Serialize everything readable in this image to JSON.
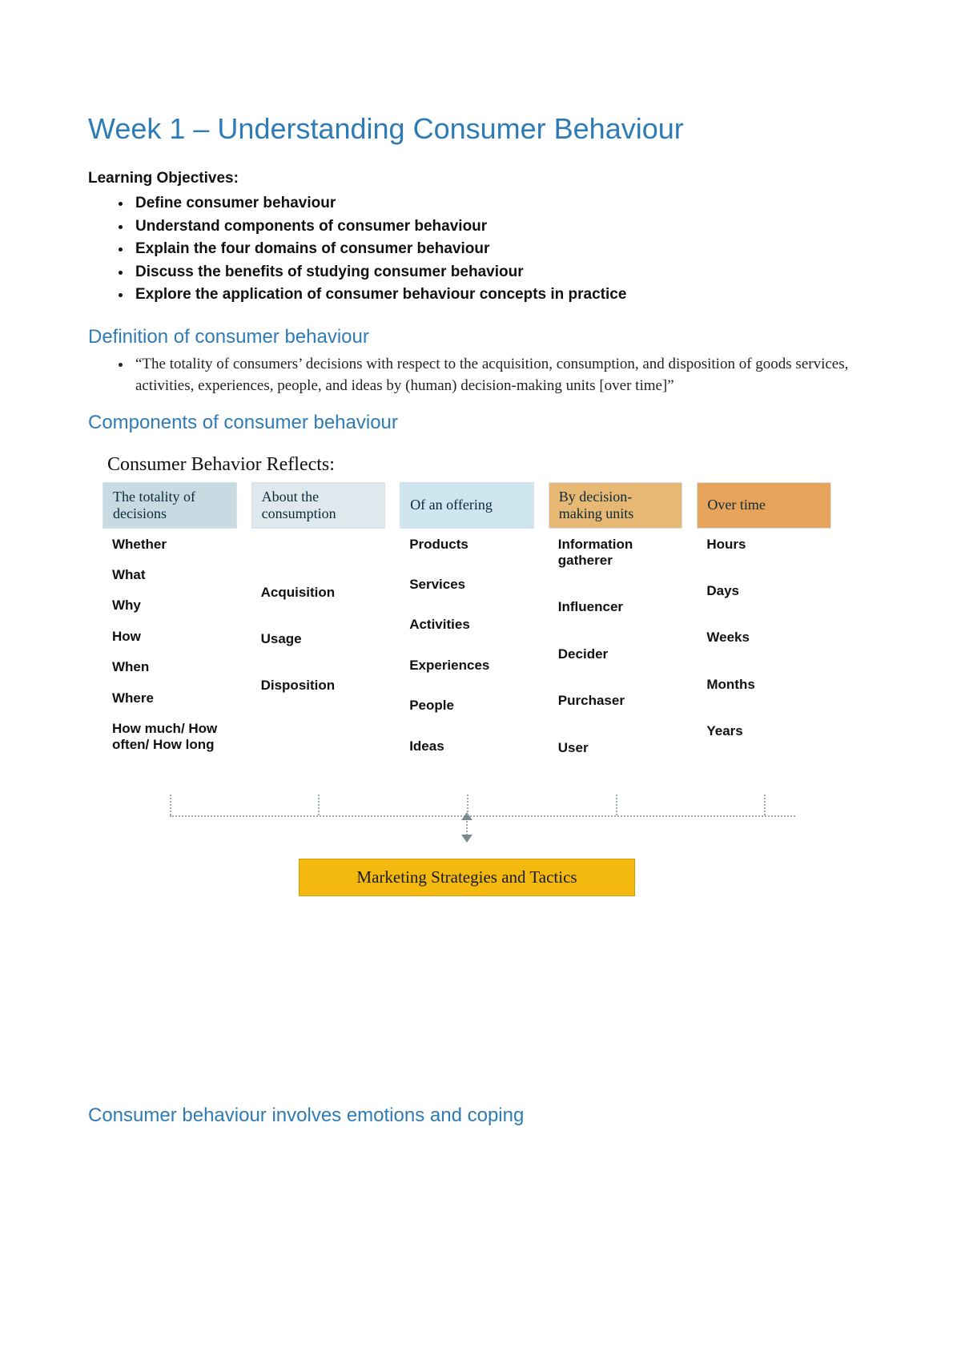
{
  "title": "Week 1 – Understanding Consumer Behaviour",
  "objectives_label": "Learning Objectives:",
  "objectives": [
    "Define consumer behaviour",
    "Understand components of consumer behaviour",
    "Explain the four domains of consumer behaviour",
    "Discuss the benefits of studying consumer behaviour",
    "Explore the application of consumer behaviour concepts in practice"
  ],
  "section_definition": "Definition of consumer behaviour",
  "definition_text": "“The totality of consumers’ decisions with respect to the acquisition, consumption, and disposition of goods services, activities, experiences, people, and ideas by (human) decision-making units [over time]”",
  "section_components": "Components of consumer behaviour",
  "diagram": {
    "title": "Consumer Behavior Reflects:",
    "header_colors": [
      "#c9dbe2",
      "#dfe9ed",
      "#cfe5f0",
      "#e7b873",
      "#e8a35a"
    ],
    "header_text_color": "#0b2a3a",
    "body_font_color": "#111111",
    "connector_color": "#9aa9af",
    "marketing_bg": "#f4b90f",
    "marketing_border": "#d79a00",
    "columns": [
      {
        "header": "The totality of decisions",
        "spacing": "tight",
        "items": [
          "Whether",
          "What",
          "Why",
          "How",
          "When",
          "Where",
          "How much/ How often/ How long"
        ]
      },
      {
        "header": "About the consumption",
        "spacing": "sparse",
        "items": [
          "Acquisition",
          "Usage",
          "Disposition"
        ]
      },
      {
        "header": "Of an offering",
        "spacing": "medium",
        "items": [
          "Products",
          "Services",
          "Activities",
          "Experiences",
          "People",
          "Ideas"
        ]
      },
      {
        "header": "By decision-making units",
        "spacing": "sparse",
        "items": [
          "Information gatherer",
          "Influencer",
          "Decider",
          "Purchaser",
          "User"
        ]
      },
      {
        "header": "Over time",
        "spacing": "sparse",
        "items": [
          "Hours",
          "Days",
          "Weeks",
          "Months",
          "Years"
        ]
      }
    ],
    "marketing_label": "Marketing Strategies and Tactics"
  },
  "section_emotions": "Consumer behaviour involves emotions and coping"
}
